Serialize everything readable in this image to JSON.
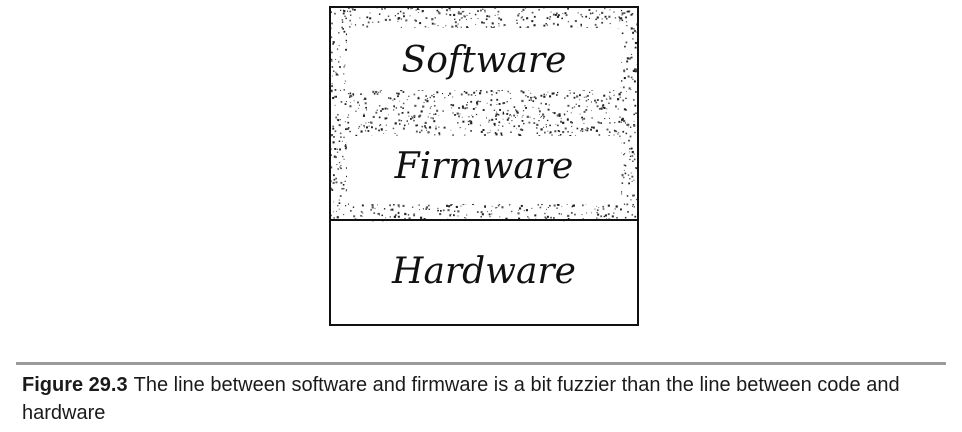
{
  "diagram": {
    "layers": [
      {
        "label": "Software",
        "fuzzy": true
      },
      {
        "label": "Firmware",
        "fuzzy": true
      },
      {
        "label": "Hardware",
        "fuzzy": false
      }
    ]
  },
  "caption": {
    "number": "Figure 29.3",
    "text": "The line between software and firmware is a bit fuzzier than the line between code and hardware"
  },
  "colors": {
    "ink": "#111111",
    "divider": "#9a9a9a"
  }
}
